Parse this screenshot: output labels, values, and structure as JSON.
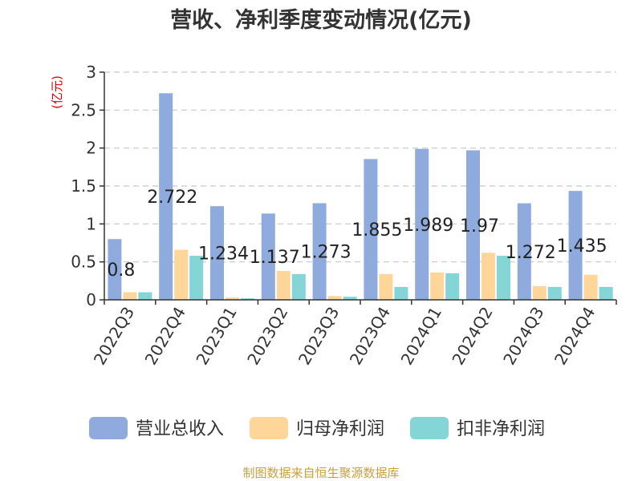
{
  "chart_data": {
    "type": "bar",
    "title": "营收、净利季度变动情况(亿元)",
    "ylabel": "(亿元)",
    "xlabel": "",
    "ylim": [
      0,
      3
    ],
    "yticks": [
      0,
      0.5,
      1,
      1.5,
      2,
      2.5,
      3
    ],
    "grid": true,
    "legend_position": "bottom",
    "categories": [
      "2022Q3",
      "2022Q4",
      "2023Q1",
      "2023Q2",
      "2023Q3",
      "2023Q4",
      "2024Q1",
      "2024Q2",
      "2024Q3",
      "2024Q4"
    ],
    "series": [
      {
        "name": "营业总收入",
        "color": "#8faadc",
        "values": [
          0.8,
          2.722,
          1.234,
          1.137,
          1.273,
          1.855,
          1.989,
          1.97,
          1.272,
          1.435
        ],
        "labels": [
          "0.8",
          "2.722",
          "1.234",
          "1.137",
          "1.273",
          "1.855",
          "1.989",
          "1.97",
          "1.272",
          "1.435"
        ]
      },
      {
        "name": "归母净利润",
        "color": "#ffd699",
        "values": [
          0.1,
          0.66,
          0.03,
          0.38,
          0.05,
          0.34,
          0.36,
          0.62,
          0.18,
          0.33
        ]
      },
      {
        "name": "扣非净利润",
        "color": "#83d5d6",
        "values": [
          0.1,
          0.58,
          0.02,
          0.34,
          0.04,
          0.17,
          0.35,
          0.58,
          0.17,
          0.17
        ]
      }
    ]
  },
  "source": "制图数据来自恒生聚源数据库"
}
